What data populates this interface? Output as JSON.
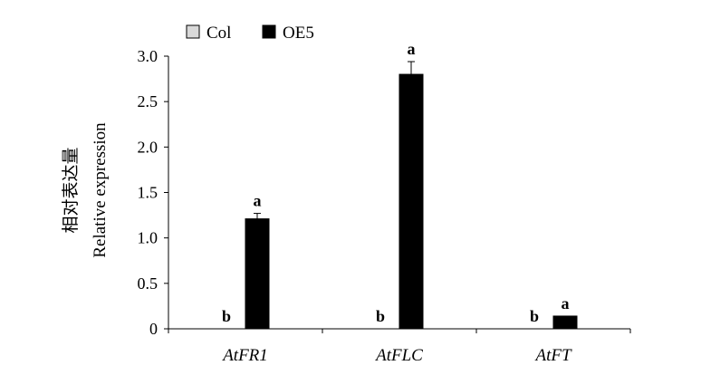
{
  "chart_data": {
    "type": "bar",
    "categories": [
      "AtFR1",
      "AtFLC",
      "AtFT"
    ],
    "ylabel_cn": "相对表达量",
    "ylabel": "Relative expression",
    "ylim": [
      0,
      3.0
    ],
    "yticks": [
      "0",
      "0.5",
      "1.0",
      "1.5",
      "2.0",
      "2.5",
      "3.0"
    ],
    "grid": false,
    "legend_position": "top-left",
    "series": [
      {
        "name": "Col",
        "color": "#d9d9d9",
        "values": [
          0.0,
          0.0,
          0.0
        ],
        "errors": [
          0,
          0,
          0
        ],
        "labels": [
          "b",
          "b",
          "b"
        ]
      },
      {
        "name": "OE5",
        "color": "#000000",
        "values": [
          1.21,
          2.8,
          0.14
        ],
        "errors": [
          0.06,
          0.14,
          0.0
        ],
        "labels": [
          "a",
          "a",
          "a"
        ]
      }
    ]
  }
}
